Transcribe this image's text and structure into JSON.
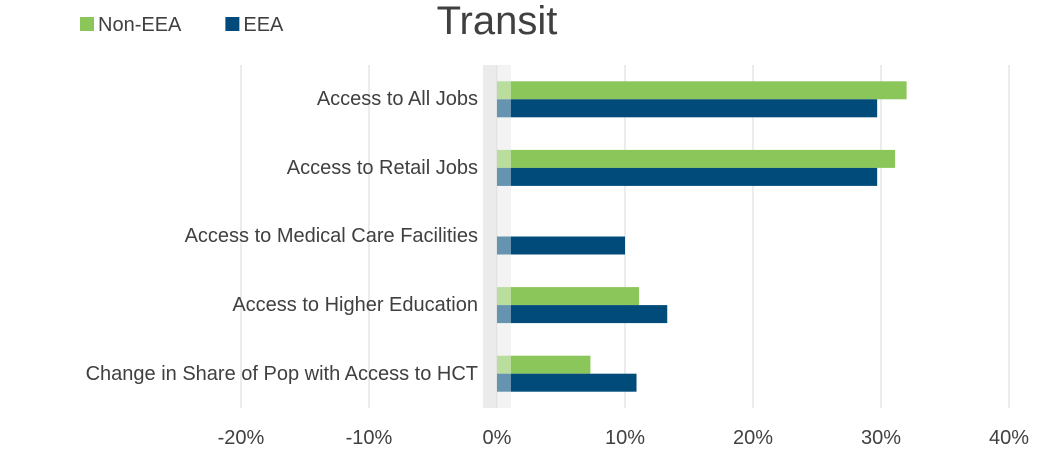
{
  "chart_data": {
    "type": "hbar",
    "title": "Transit",
    "categories": [
      "Access to All Jobs",
      "Access to Retail Jobs",
      "Access to Medical Care Facilities",
      "Access to Higher Education",
      "Change in Share of Pop with Access to HCT"
    ],
    "series": [
      {
        "name": "Non-EEA",
        "color": "#8bc65a",
        "values": [
          32.0,
          31.1,
          0,
          11.1,
          7.3
        ]
      },
      {
        "name": "EEA",
        "color": "#004b7a",
        "values": [
          29.7,
          29.7,
          10.0,
          13.3,
          10.9
        ]
      }
    ],
    "xlim": [
      -20,
      40
    ],
    "xticks": [
      {
        "value": -20,
        "label": "-20%"
      },
      {
        "value": -10,
        "label": "-10%"
      },
      {
        "value": 0,
        "label": "0%"
      },
      {
        "value": 10,
        "label": "10%"
      },
      {
        "value": 20,
        "label": "20%"
      },
      {
        "value": 30,
        "label": "30%"
      },
      {
        "value": 40,
        "label": "40%"
      }
    ],
    "grid": true,
    "legend": "top-left"
  }
}
